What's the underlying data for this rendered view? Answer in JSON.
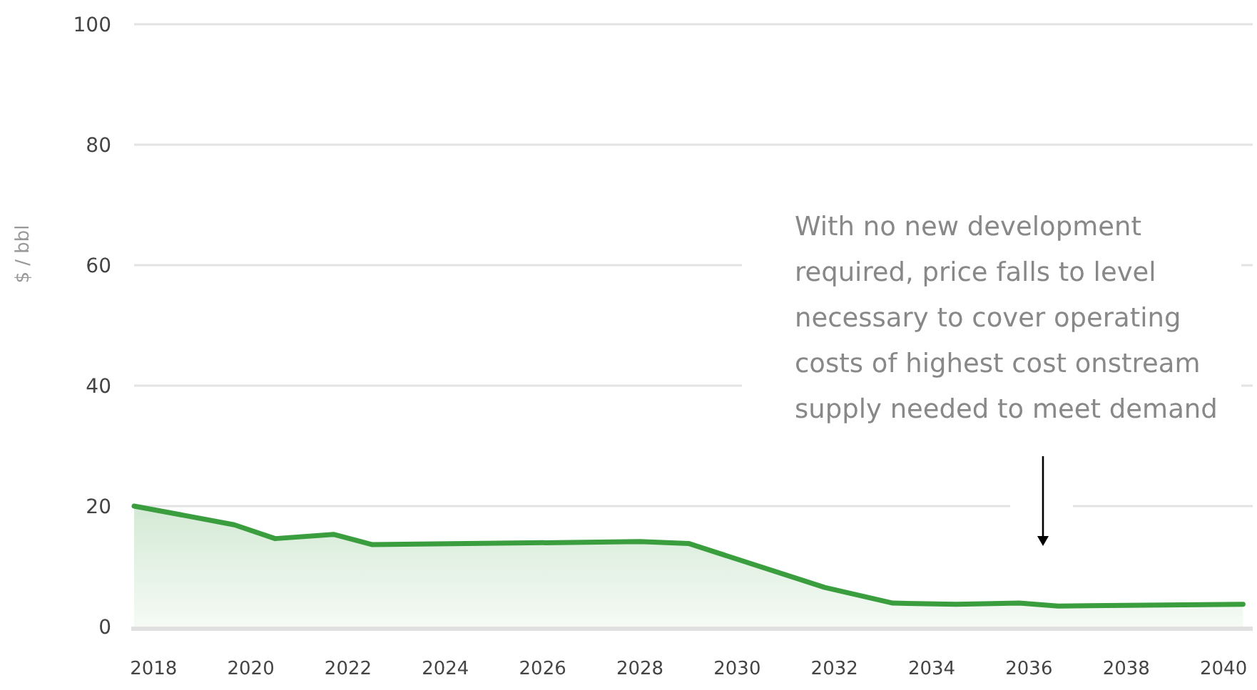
{
  "chart_data": {
    "type": "area",
    "ylabel": "$ / bbl",
    "x": [
      2017.6,
      2019.66,
      2020.5,
      2021.7,
      2022.5,
      2028.0,
      2029.0,
      2031.8,
      2033.2,
      2034.5,
      2035.8,
      2036.6,
      2040.4
    ],
    "series": [
      {
        "color": "#3a9e3e",
        "values": [
          20,
          16.9,
          14.6,
          15.3,
          13.6,
          14.1,
          13.8,
          6.5,
          3.9,
          3.7,
          3.9,
          3.4,
          3.7
        ]
      }
    ],
    "xlim": [
      2017.6,
      2040.6
    ],
    "xticks": [
      2018,
      2020,
      2022,
      2024,
      2026,
      2028,
      2030,
      2032,
      2034,
      2036,
      2038,
      2040
    ],
    "ylim": [
      0,
      100
    ],
    "yticks": [
      0,
      20,
      40,
      60,
      80,
      100
    ],
    "grid": "y",
    "annotations": [
      "With no new development required, price falls to level necessary to cover operating costs of highest cost onstream supply needed to meet demand"
    ]
  }
}
